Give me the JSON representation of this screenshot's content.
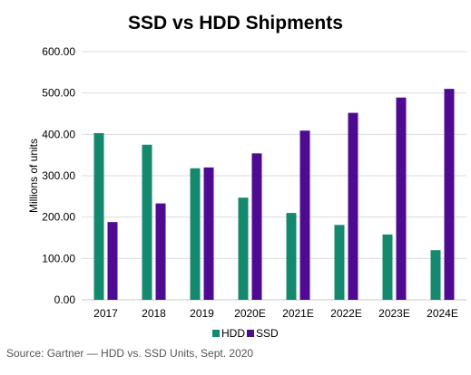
{
  "chart_data": {
    "type": "bar",
    "title": "SSD vs HDD Shipments",
    "xlabel": "",
    "ylabel": "Millions of units",
    "categories": [
      "2017",
      "2018",
      "2019",
      "2020E",
      "2021E",
      "2022E",
      "2023E",
      "2024E"
    ],
    "series": [
      {
        "name": "HDD",
        "color": "#14896e",
        "values": [
          403,
          375,
          318,
          247,
          210,
          181,
          158,
          120
        ]
      },
      {
        "name": "SSD",
        "color": "#4e0b91",
        "values": [
          188,
          233,
          320,
          354,
          409,
          452,
          489,
          510
        ]
      }
    ],
    "ylim": [
      0,
      600
    ],
    "yticks": [
      0,
      100,
      200,
      300,
      400,
      500,
      600
    ],
    "ytick_labels": [
      "0.00",
      "100.00",
      "200.00",
      "300.00",
      "400.00",
      "500.00",
      "600.00"
    ],
    "grid": "horizontal",
    "legend": "bottom-center",
    "source": "Source: Gartner — HDD vs. SSD Units, Sept. 2020"
  }
}
